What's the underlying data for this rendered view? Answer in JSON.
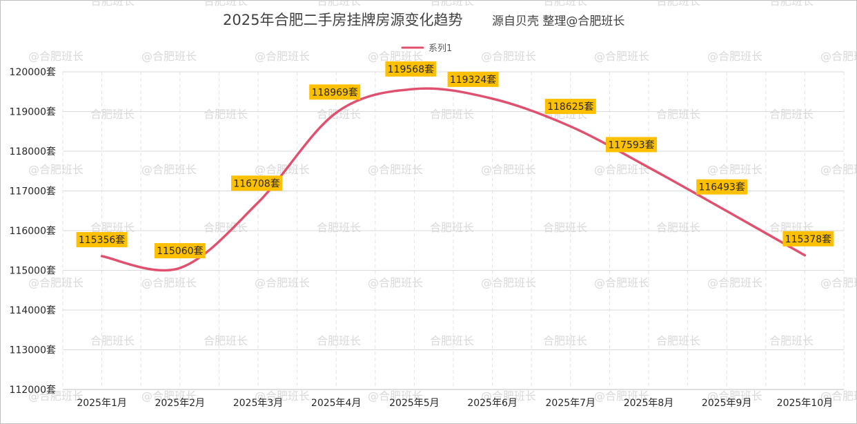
{
  "chart_data": {
    "type": "line",
    "title": "2025年合肥二手房挂牌房源变化趋势",
    "subtitle": "源自贝壳 整理@合肥班长",
    "categories": [
      "2025年1月",
      "2025年2月",
      "2025年3月",
      "2025年4月",
      "2025年5月",
      "2025年6月",
      "2025年7月",
      "2025年8月",
      "2025年9月",
      "2025年10月"
    ],
    "series": [
      {
        "name": "系列1",
        "values": [
          115356,
          115060,
          116708,
          118969,
          119568,
          119324,
          118625,
          117593,
          116493,
          115378
        ],
        "data_labels": [
          "115356套",
          "115060套",
          "116708套",
          "118969套",
          "119568套",
          "119324套",
          "118625套",
          "117593套",
          "116493套",
          "115378套"
        ],
        "color": "#e0506f",
        "smooth": true
      }
    ],
    "ylim": [
      112000,
      120000
    ],
    "ytick_values": [
      112000,
      113000,
      114000,
      115000,
      116000,
      117000,
      118000,
      119000,
      120000
    ],
    "ytick_labels": [
      "112000套",
      "113000套",
      "114000套",
      "115000套",
      "116000套",
      "117000套",
      "118000套",
      "119000套",
      "120000套"
    ],
    "legend": "top-center",
    "grid": true,
    "label_bg_color": "#ffc000"
  },
  "watermark": {
    "texts": [
      "@合肥班长",
      "合肥班长"
    ],
    "color": "#d9d9d9"
  }
}
